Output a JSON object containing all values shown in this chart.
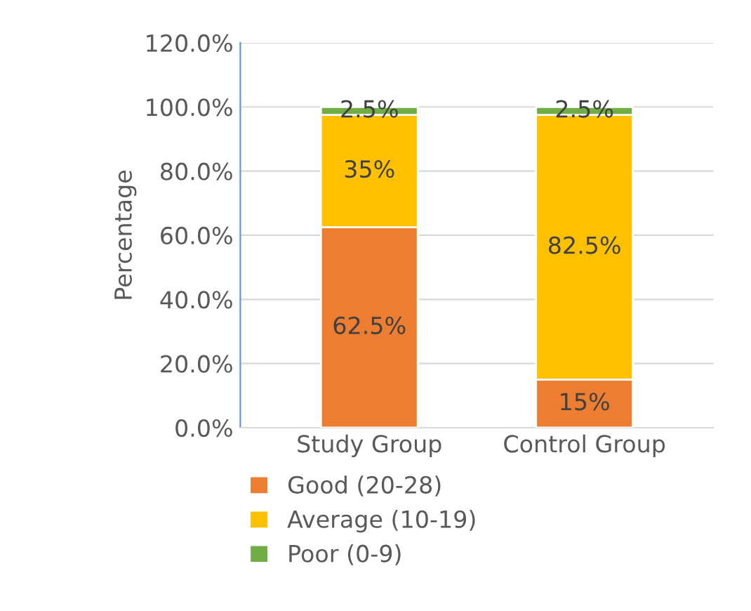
{
  "chart_data": {
    "type": "bar",
    "stacked": true,
    "ylabel": "Percentage",
    "categories": [
      "Study Group",
      "Control Group"
    ],
    "series": [
      {
        "name": "Good (20-28)",
        "color": "#ed7d31",
        "values": [
          62.5,
          15
        ],
        "value_labels": [
          "62.5%",
          "15%"
        ]
      },
      {
        "name": "Average (10-19)",
        "color": "#ffc000",
        "values": [
          35,
          82.5
        ],
        "value_labels": [
          "35%",
          "82.5%"
        ]
      },
      {
        "name": "Poor (0-9)",
        "color": "#70ad47",
        "values": [
          2.5,
          2.5
        ],
        "value_labels": [
          "2.5%",
          "2.5%"
        ]
      }
    ],
    "ylim": [
      0,
      120
    ],
    "yticks": [
      {
        "value": 0,
        "label": "0.0%"
      },
      {
        "value": 20,
        "label": "20.0%"
      },
      {
        "value": 40,
        "label": "40.0%"
      },
      {
        "value": 60,
        "label": "60.0%"
      },
      {
        "value": 80,
        "label": "80.0%"
      },
      {
        "value": 100,
        "label": "100.0%"
      },
      {
        "value": 120,
        "label": "120.0%"
      }
    ],
    "grid": "y",
    "legend": "bottom left"
  }
}
